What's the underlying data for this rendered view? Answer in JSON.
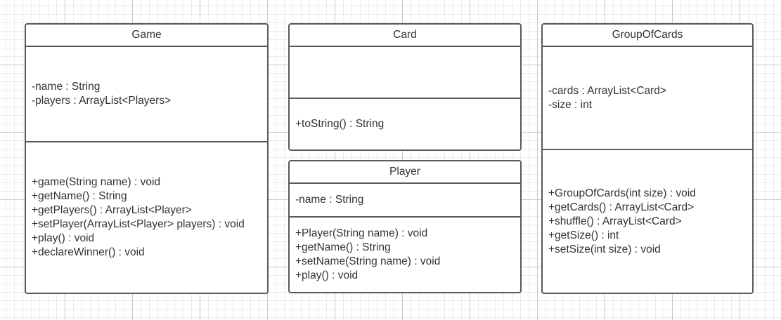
{
  "classes": {
    "game": {
      "name": "Game",
      "attributes": [
        "-name : String",
        "-players : ArrayList<Players>"
      ],
      "methods": [
        "+game(String name) : void",
        "+getName() : String",
        "+getPlayers() : ArrayList<Player>",
        "+setPlayer(ArrayList<Player> players) : void",
        "+play() : void",
        "+declareWinner() : void"
      ]
    },
    "card": {
      "name": "Card",
      "attributes": [],
      "methods": [
        "+toString() : String"
      ]
    },
    "player": {
      "name": "Player",
      "attributes": [
        "-name : String"
      ],
      "methods": [
        "+Player(String name) : void",
        "+getName() : String",
        "+setName(String name) : void",
        "+play() : void"
      ]
    },
    "group": {
      "name": "GroupOfCards",
      "attributes": [
        "-cards : ArrayList<Card>",
        "-size : int"
      ],
      "methods": [
        "+GroupOfCards(int size) : void",
        "+getCards() : ArrayList<Card>",
        "+shuffle() : ArrayList<Card>",
        "+getSize() : int",
        "+setSize(int size) : void"
      ]
    }
  }
}
